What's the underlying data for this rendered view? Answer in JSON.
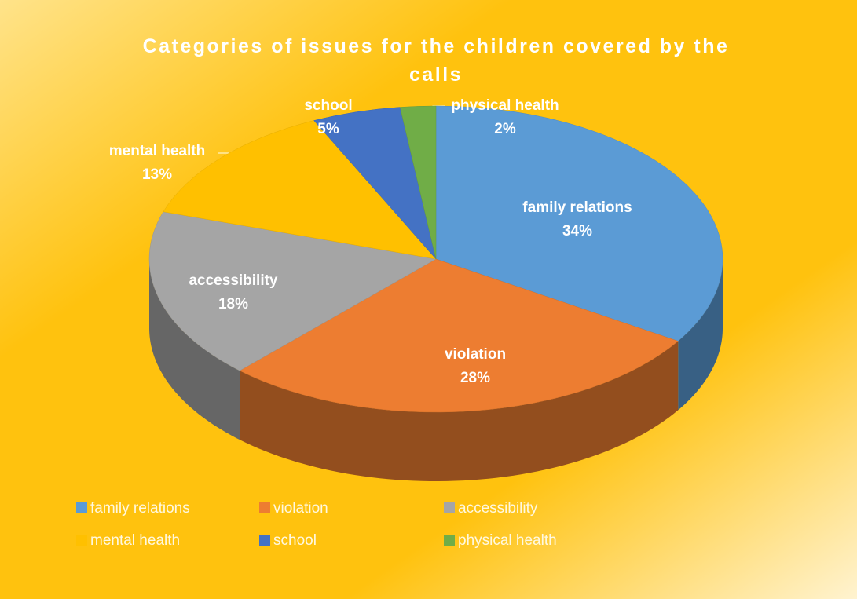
{
  "chart_data": {
    "type": "pie",
    "title": "Categories of issues for the children covered by the calls",
    "categories": [
      "family relations",
      "violation",
      "accessibility",
      "mental health",
      "school",
      "physical health"
    ],
    "values": [
      34,
      28,
      18,
      13,
      5,
      2
    ],
    "value_labels": [
      "34%",
      "28%",
      "18%",
      "13%",
      "5%",
      "2%"
    ],
    "colors": [
      "#5b9bd5",
      "#ed7d31",
      "#a5a5a5",
      "#ffc000",
      "#4472c4",
      "#70ad47"
    ],
    "legend": "bottom"
  }
}
